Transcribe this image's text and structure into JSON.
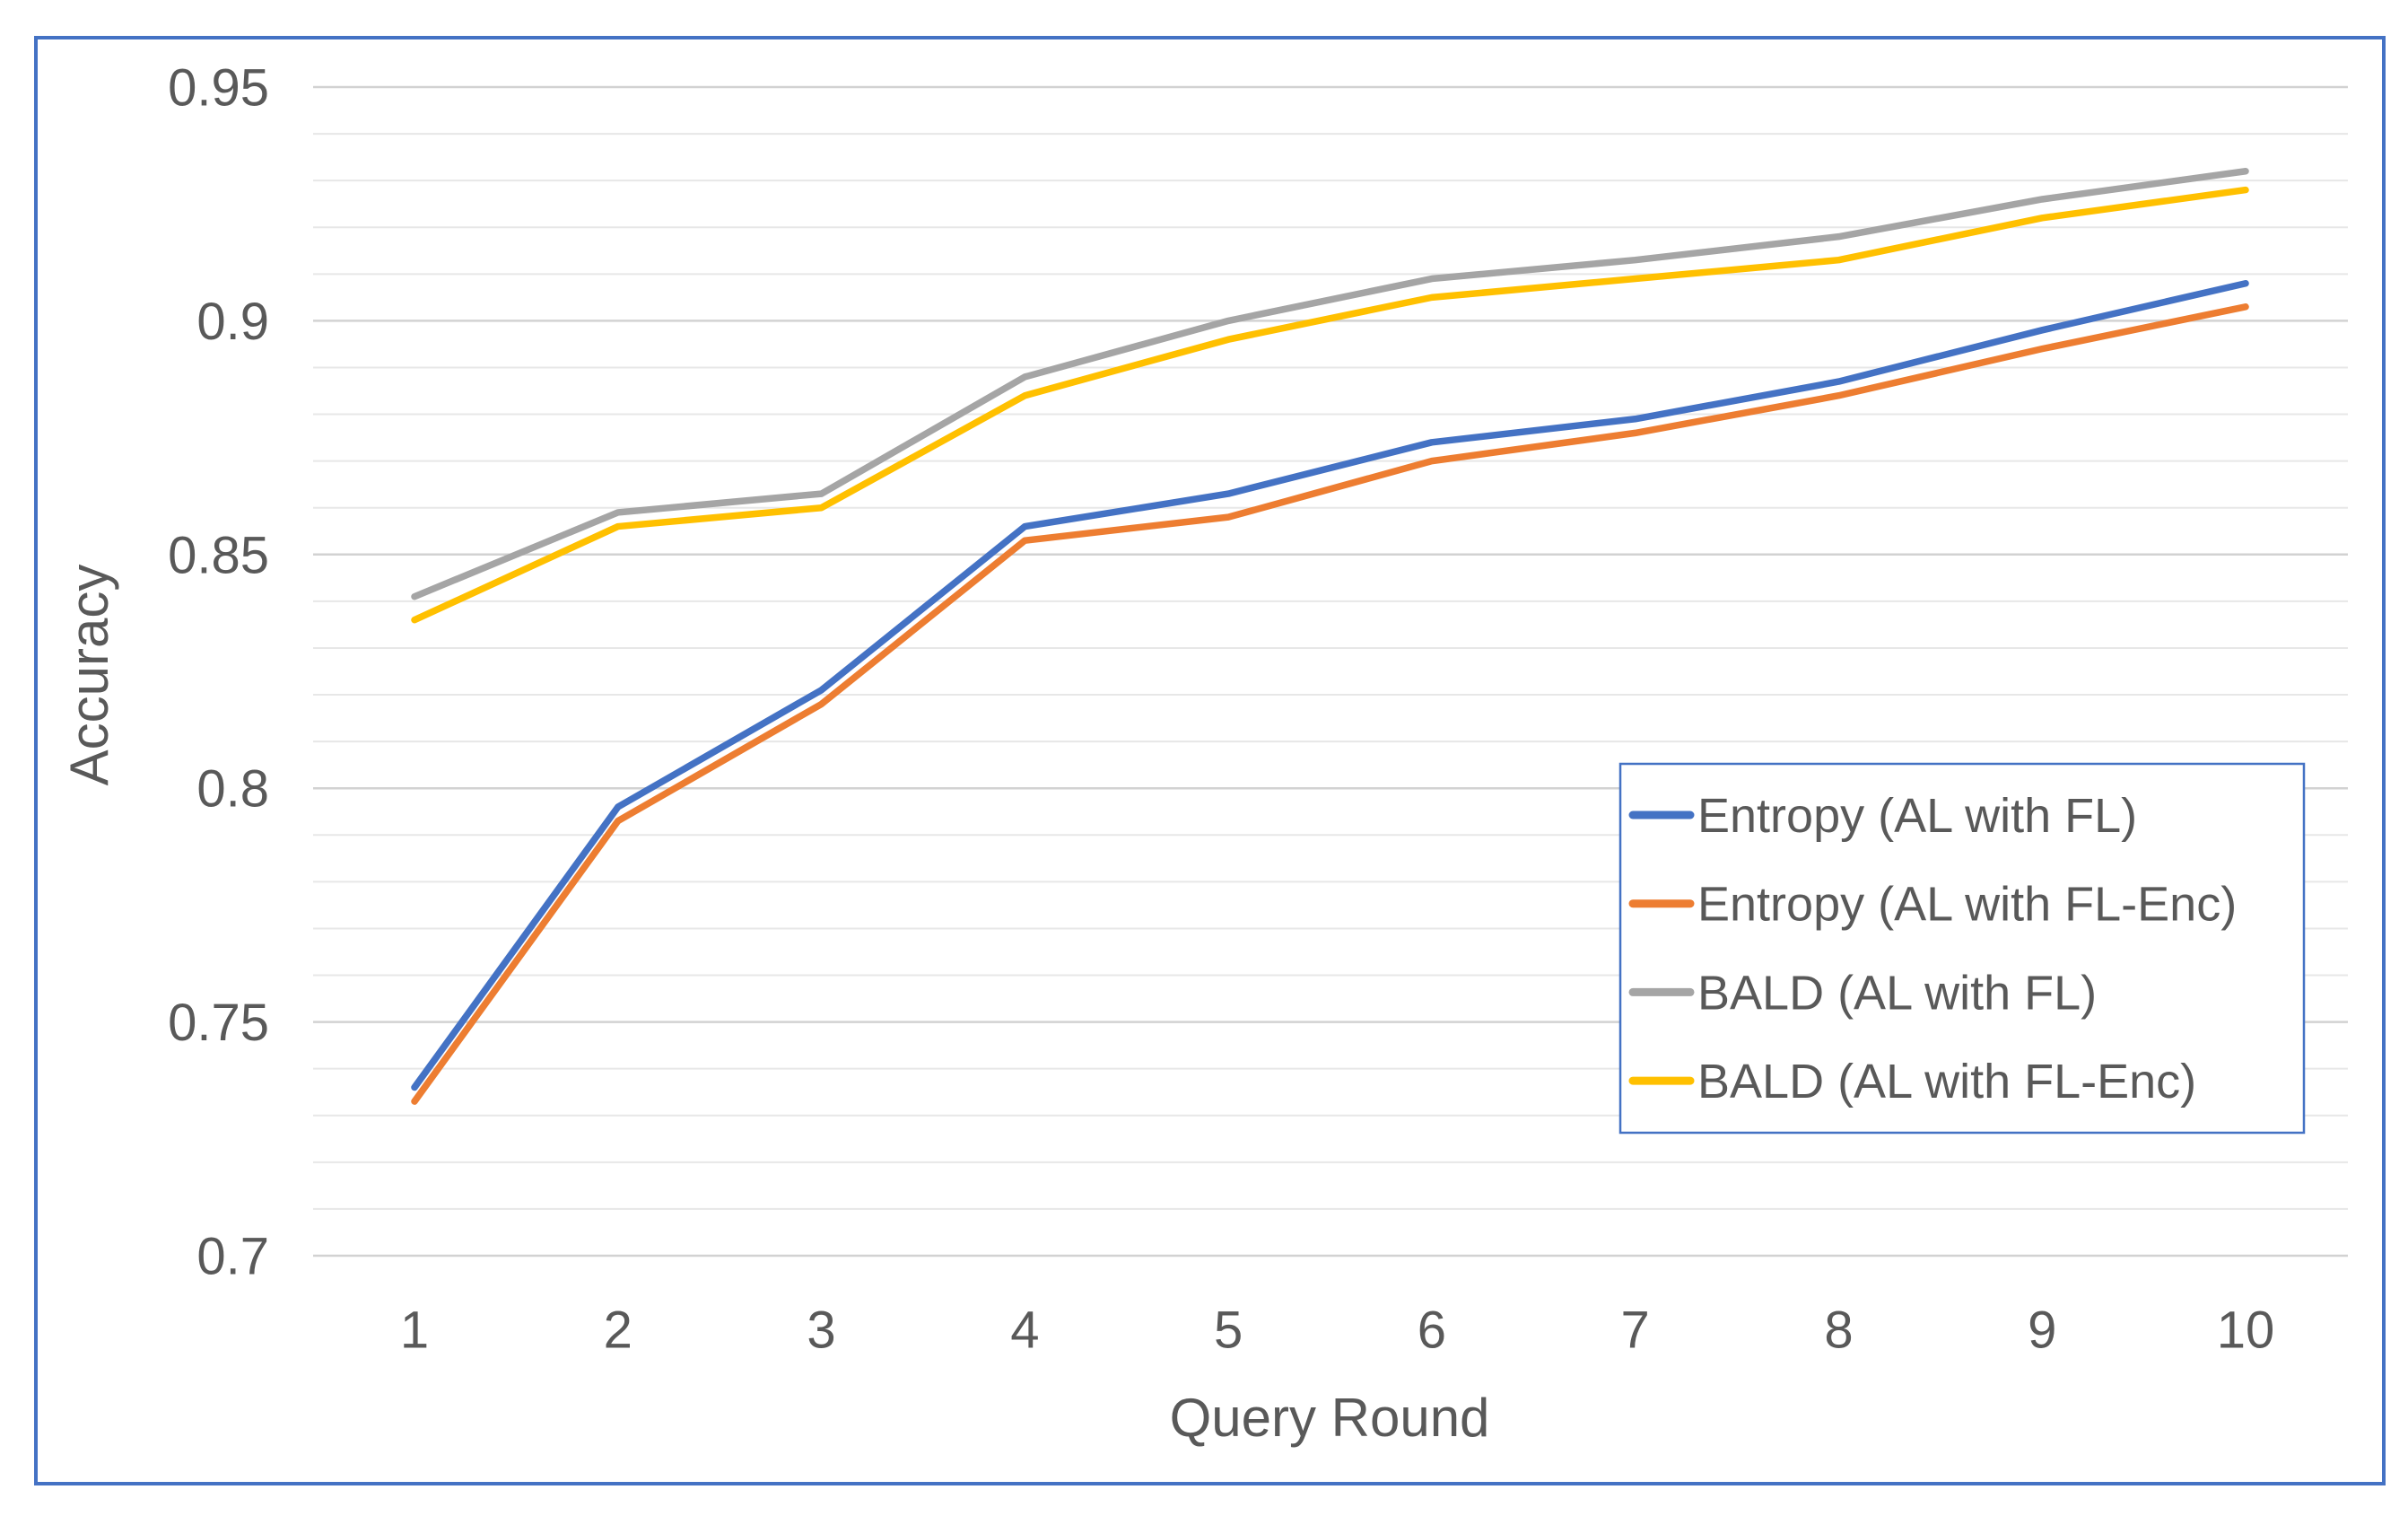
{
  "chart_data": {
    "type": "line",
    "title": "",
    "xlabel": "Query Round",
    "ylabel": "Accuracy",
    "x": [
      1,
      2,
      3,
      4,
      5,
      6,
      7,
      8,
      9,
      10
    ],
    "series": [
      {
        "name": "Entropy (AL with FL)",
        "color": "#4472C4",
        "values": [
          0.736,
          0.796,
          0.821,
          0.856,
          0.863,
          0.874,
          0.879,
          0.887,
          0.898,
          0.908
        ]
      },
      {
        "name": "Entropy (AL with FL-Enc)",
        "color": "#ED7D31",
        "values": [
          0.733,
          0.793,
          0.818,
          0.853,
          0.858,
          0.87,
          0.876,
          0.884,
          0.894,
          0.903
        ]
      },
      {
        "name": "BALD (AL with FL)",
        "color": "#A5A5A5",
        "values": [
          0.841,
          0.859,
          0.863,
          0.888,
          0.9,
          0.909,
          0.913,
          0.918,
          0.926,
          0.932
        ]
      },
      {
        "name": "BALD (AL with FL-Enc)",
        "color": "#FFC000",
        "values": [
          0.836,
          0.856,
          0.86,
          0.884,
          0.896,
          0.905,
          0.909,
          0.913,
          0.922,
          0.928
        ]
      }
    ],
    "ylim": [
      0.7,
      0.95
    ],
    "y_major_tick_values": [
      0.95,
      0.9,
      0.85,
      0.8,
      0.75,
      0.7
    ],
    "y_major_tick_labels": [
      "0.95",
      "0.9",
      "0.85",
      "0.8",
      "0.75",
      "0.7"
    ],
    "minor_grid_step": 0.01,
    "grid": true,
    "legend_position": "middle-right"
  },
  "style": {
    "frame_border_color": "#4472C4",
    "legend_border_color": "#4472C4",
    "legend_fill": "#ffffff",
    "major_gridline_color": "#d2d2d2",
    "minor_gridline_color": "#e7e7e7",
    "text_color": "#595959"
  }
}
